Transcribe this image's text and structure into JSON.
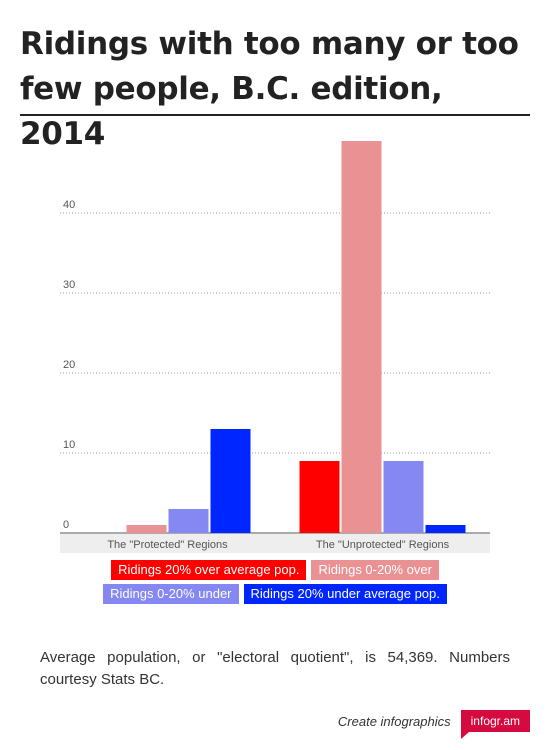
{
  "title": "Ridings with too many or too few people, B.C. edition, 2014",
  "chart_data": {
    "type": "bar",
    "categories": [
      "The \"Protected\" Regions",
      "The \"Unprotected\" Regions"
    ],
    "series": [
      {
        "name": "Ridings 20% over average pop.",
        "values": [
          0,
          9
        ],
        "color": "#ff0000"
      },
      {
        "name": "Ridings 0-20% over",
        "values": [
          1,
          49
        ],
        "color": "#ea9193"
      },
      {
        "name": "Ridings 0-20% under",
        "values": [
          3,
          9
        ],
        "color": "#8587f2"
      },
      {
        "name": "Ridings 20% under average pop.",
        "values": [
          13,
          1
        ],
        "color": "#0026ff"
      }
    ],
    "y_ticks": [
      0,
      10,
      20,
      30,
      40
    ],
    "ylim": [
      0,
      49
    ],
    "grid": true,
    "legend_placement": "bottom"
  },
  "note": "Average population, or \"electoral quotient\", is 54,369. Numbers courtesy Stats BC.",
  "footer": {
    "text": "Create infographics",
    "brand": "infogr.am",
    "brand_color": "#d50a3f"
  }
}
